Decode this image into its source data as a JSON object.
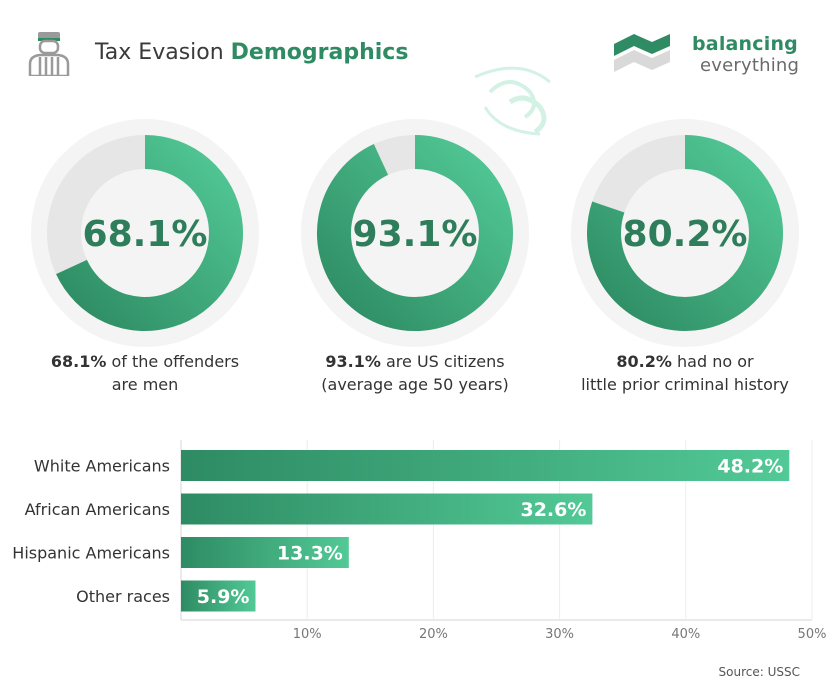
{
  "header": {
    "title_light": "Tax Evasion ",
    "title_bold": "Demographics",
    "icon": "prisoner-icon",
    "logo_line1": "balancing",
    "logo_line2": "everything"
  },
  "colors": {
    "green_dark": "#2e8b63",
    "green_light": "#52c996",
    "gray_track": "#e6e6e6",
    "gray_halo": "#f4f4f4"
  },
  "chart_data": [
    {
      "type": "pie",
      "variant": "donut",
      "center_label": "68.1%",
      "values": [
        68.1,
        31.9
      ],
      "caption_bold": "68.1%",
      "caption_rest_1": " of the offenders",
      "caption_line2": "are men"
    },
    {
      "type": "pie",
      "variant": "donut",
      "center_label": "93.1%",
      "values": [
        93.1,
        6.9
      ],
      "caption_bold": "93.1%",
      "caption_rest_1": " are US citizens",
      "caption_line2": "(average age 50 years)"
    },
    {
      "type": "pie",
      "variant": "donut",
      "center_label": "80.2%",
      "values": [
        80.2,
        19.8
      ],
      "caption_bold": "80.2%",
      "caption_rest_1": " had no or",
      "caption_line2": "little prior criminal history"
    },
    {
      "type": "bar",
      "orientation": "horizontal",
      "categories": [
        "White Americans",
        "African Americans",
        "Hispanic Americans",
        "Other races"
      ],
      "values": [
        48.2,
        32.6,
        13.3,
        5.9
      ],
      "data_labels": [
        "48.2%",
        "32.6%",
        "13.3%",
        "5.9%"
      ],
      "xlim": [
        0,
        50
      ],
      "xticks": [
        10,
        20,
        30,
        40,
        50
      ],
      "xtick_labels": [
        "10%",
        "20%",
        "30%",
        "40%",
        "50%"
      ],
      "grid": true
    }
  ],
  "footer": {
    "source": "Source: USSC"
  }
}
